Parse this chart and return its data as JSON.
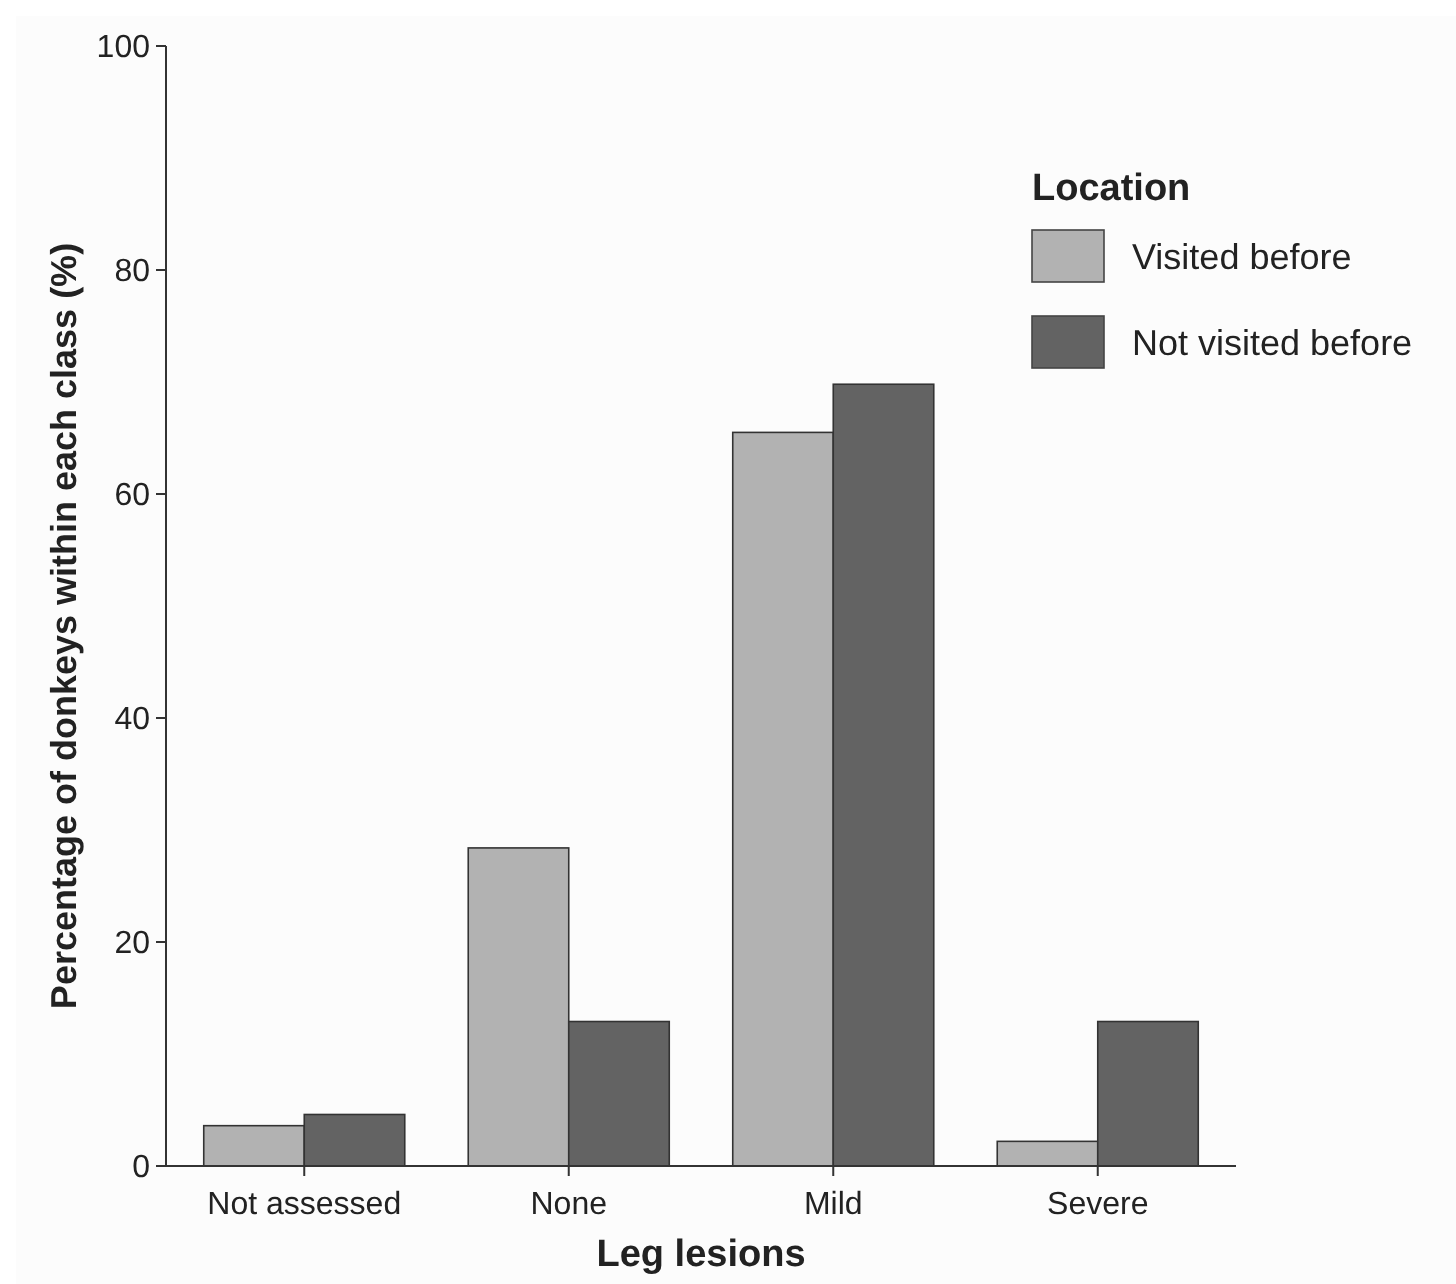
{
  "chart_data": {
    "type": "bar",
    "xlabel": "Leg lesions",
    "ylabel": "Percentage of donkeys within each class (%)",
    "legend_title": "Location",
    "categories": [
      "Not assessed",
      "None",
      "Mild",
      "Severe"
    ],
    "series": [
      {
        "name": "Visited before",
        "color": "#b2b2b2",
        "values": [
          3.6,
          28.4,
          65.5,
          2.2
        ]
      },
      {
        "name": "Not visited before",
        "color": "#636363",
        "values": [
          4.6,
          12.9,
          69.8,
          12.9
        ]
      }
    ],
    "ylim": [
      0,
      100
    ],
    "yticks": [
      0,
      20,
      40,
      60,
      80,
      100
    ],
    "grid": false,
    "legend": "top right"
  }
}
